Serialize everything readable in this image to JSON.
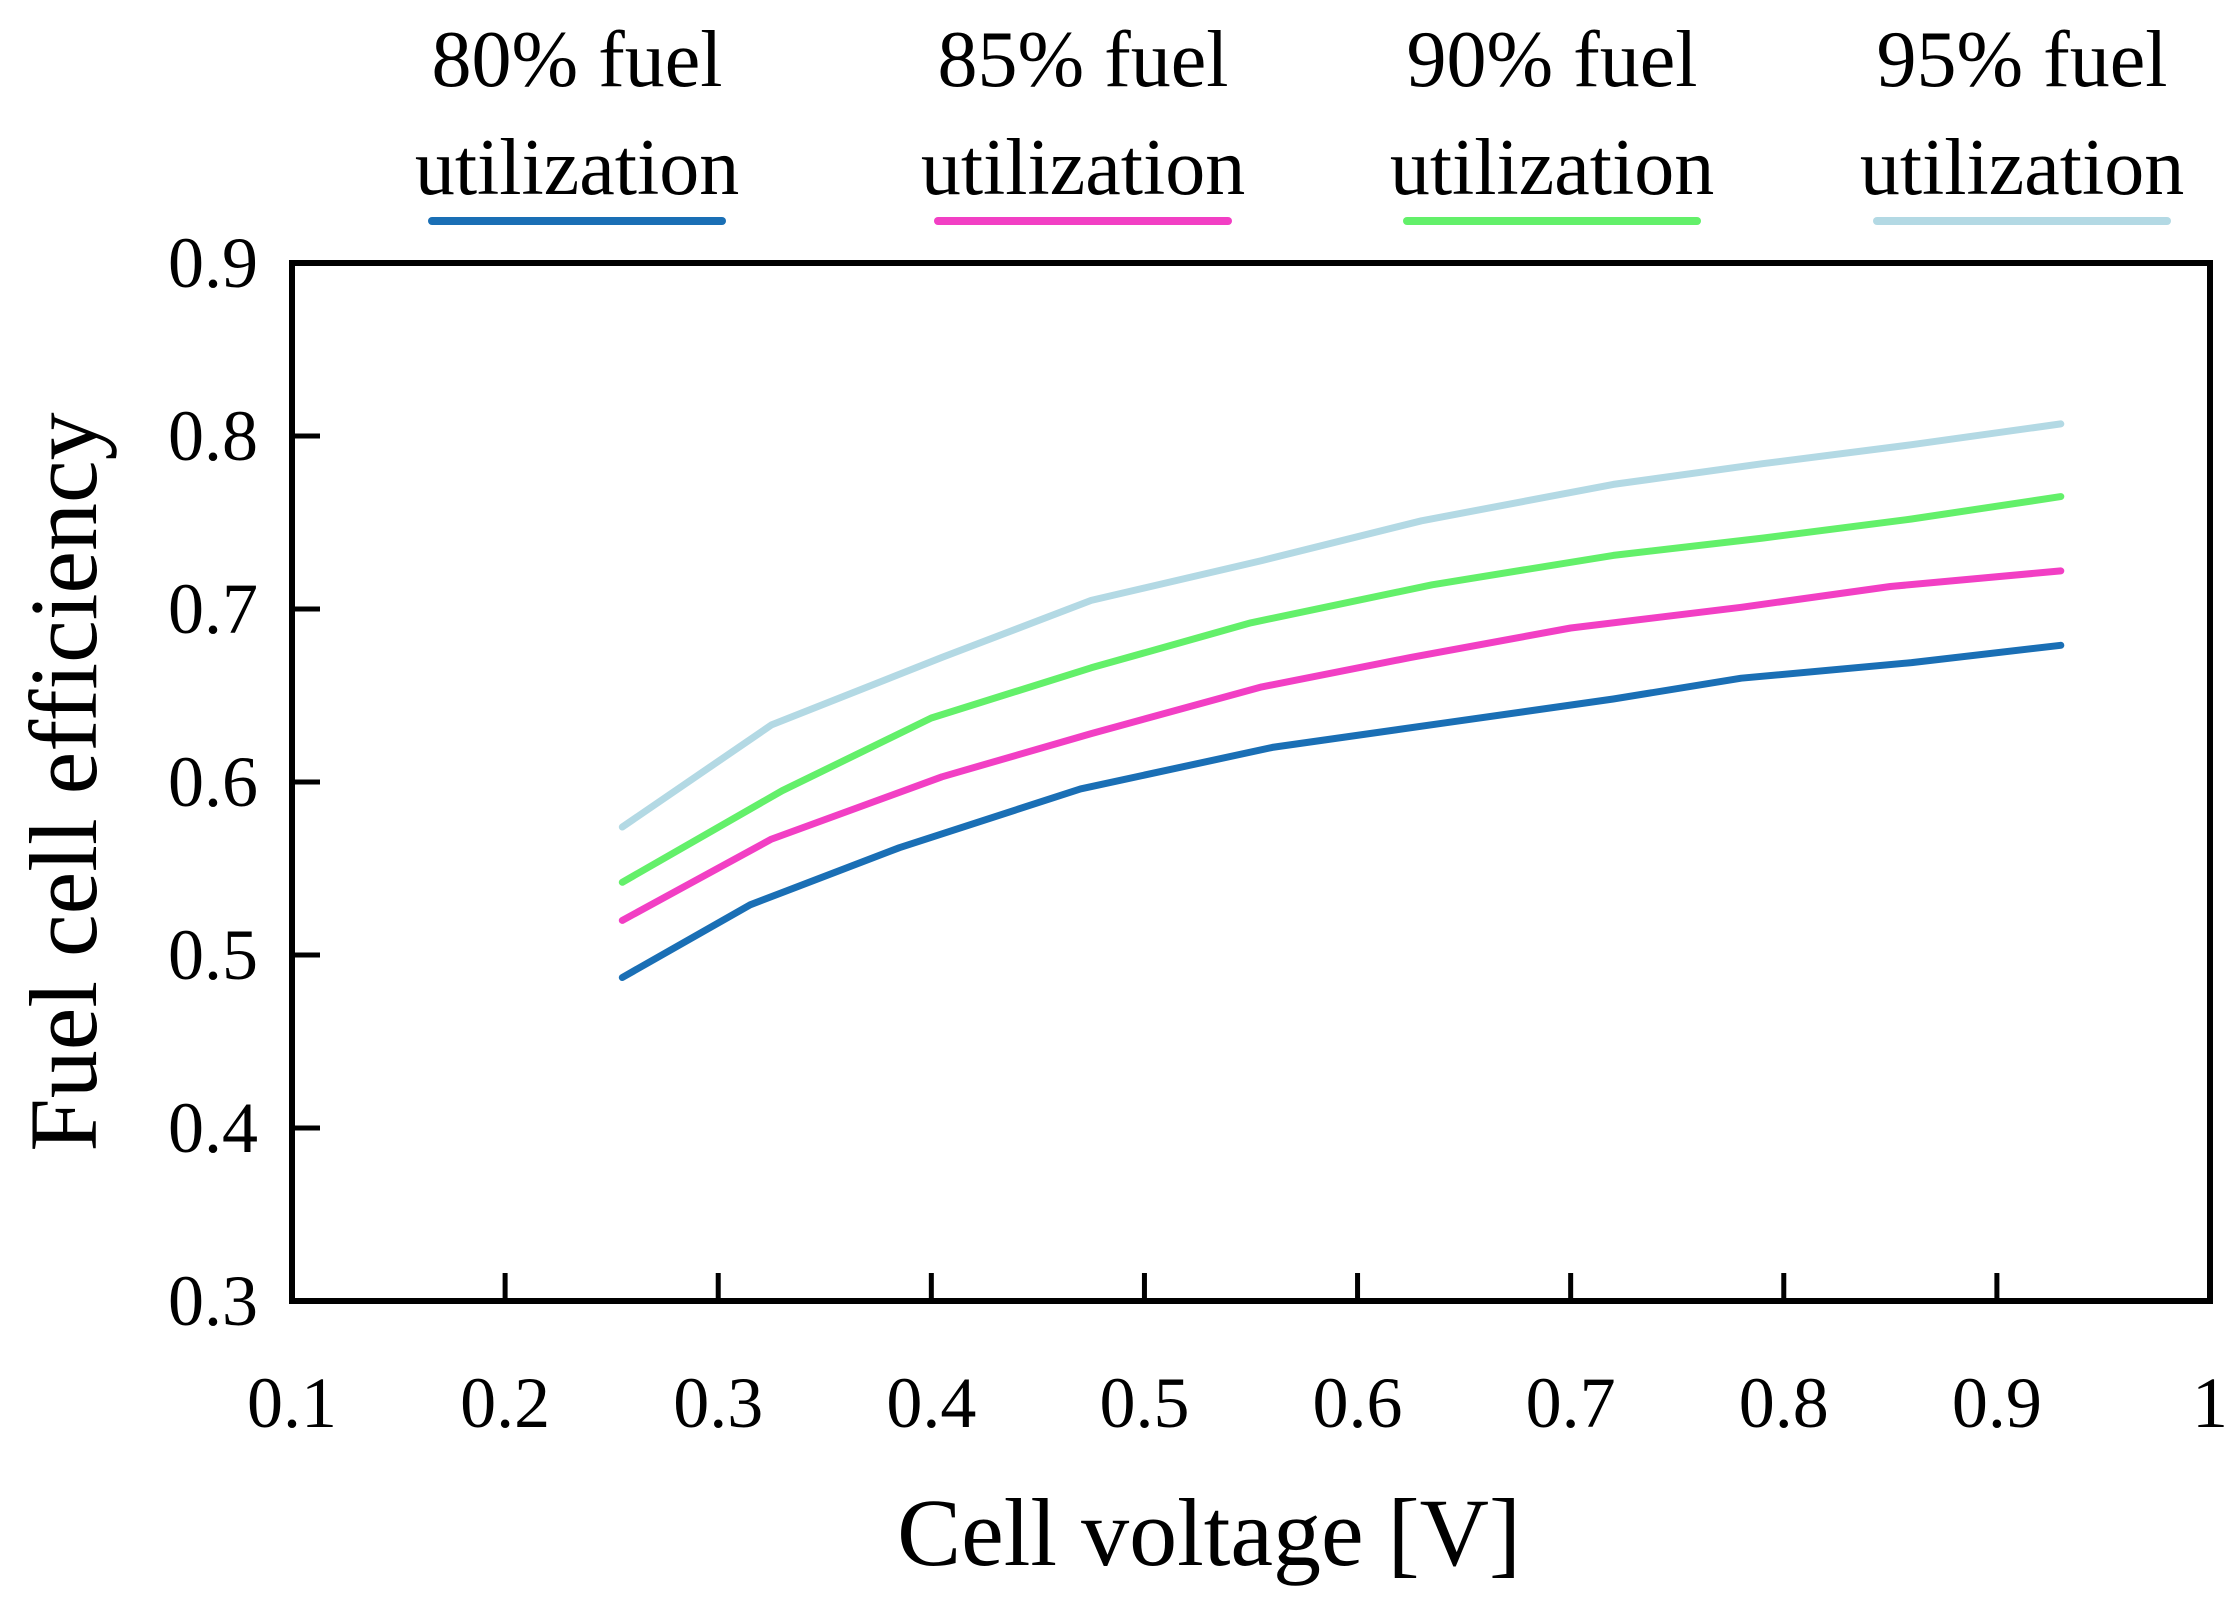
{
  "chart_data": {
    "type": "line",
    "xlabel": "Cell voltage [V]",
    "ylabel": "Fuel cell efficiency",
    "xlim": [
      0.1,
      1.0
    ],
    "ylim": [
      0.3,
      0.9
    ],
    "xticks": [
      0.1,
      0.2,
      0.3,
      0.4,
      0.5,
      0.6,
      0.7,
      0.8,
      0.9,
      1.0
    ],
    "xtick_labels": [
      "0.1",
      "0.2",
      "0.3",
      "0.4",
      "0.5",
      "0.6",
      "0.7",
      "0.8",
      "0.9",
      "1"
    ],
    "yticks": [
      0.3,
      0.4,
      0.5,
      0.6,
      0.7,
      0.8,
      0.9
    ],
    "ytick_labels": [
      "0.3",
      "0.4",
      "0.5",
      "0.6",
      "0.7",
      "0.8",
      "0.9"
    ],
    "grid": false,
    "legend_position": "top",
    "series": [
      {
        "name_line1": "80% fuel",
        "name_line2": "utilization",
        "color": "#1a6fb5",
        "x": [
          0.255,
          0.315,
          0.385,
          0.47,
          0.56,
          0.64,
          0.72,
          0.78,
          0.86,
          0.93
        ],
        "y": [
          0.487,
          0.529,
          0.562,
          0.596,
          0.62,
          0.634,
          0.648,
          0.66,
          0.669,
          0.679
        ]
      },
      {
        "name_line1": "85% fuel",
        "name_line2": "utilization",
        "color": "#f23fc4",
        "x": [
          0.255,
          0.325,
          0.405,
          0.475,
          0.555,
          0.625,
          0.7,
          0.78,
          0.85,
          0.93
        ],
        "y": [
          0.52,
          0.567,
          0.603,
          0.628,
          0.655,
          0.672,
          0.689,
          0.701,
          0.713,
          0.722
        ]
      },
      {
        "name_line1": "90% fuel",
        "name_line2": "utilization",
        "color": "#63f06a",
        "x": [
          0.255,
          0.33,
          0.4,
          0.475,
          0.55,
          0.635,
          0.72,
          0.79,
          0.86,
          0.93
        ],
        "y": [
          0.542,
          0.595,
          0.637,
          0.666,
          0.692,
          0.714,
          0.731,
          0.741,
          0.752,
          0.765
        ]
      },
      {
        "name_line1": "95% fuel",
        "name_line2": "utilization",
        "color": "#b3d9e4",
        "x": [
          0.255,
          0.325,
          0.405,
          0.475,
          0.555,
          0.63,
          0.72,
          0.79,
          0.86,
          0.93
        ],
        "y": [
          0.574,
          0.633,
          0.672,
          0.705,
          0.728,
          0.751,
          0.772,
          0.784,
          0.795,
          0.807
        ]
      }
    ]
  }
}
